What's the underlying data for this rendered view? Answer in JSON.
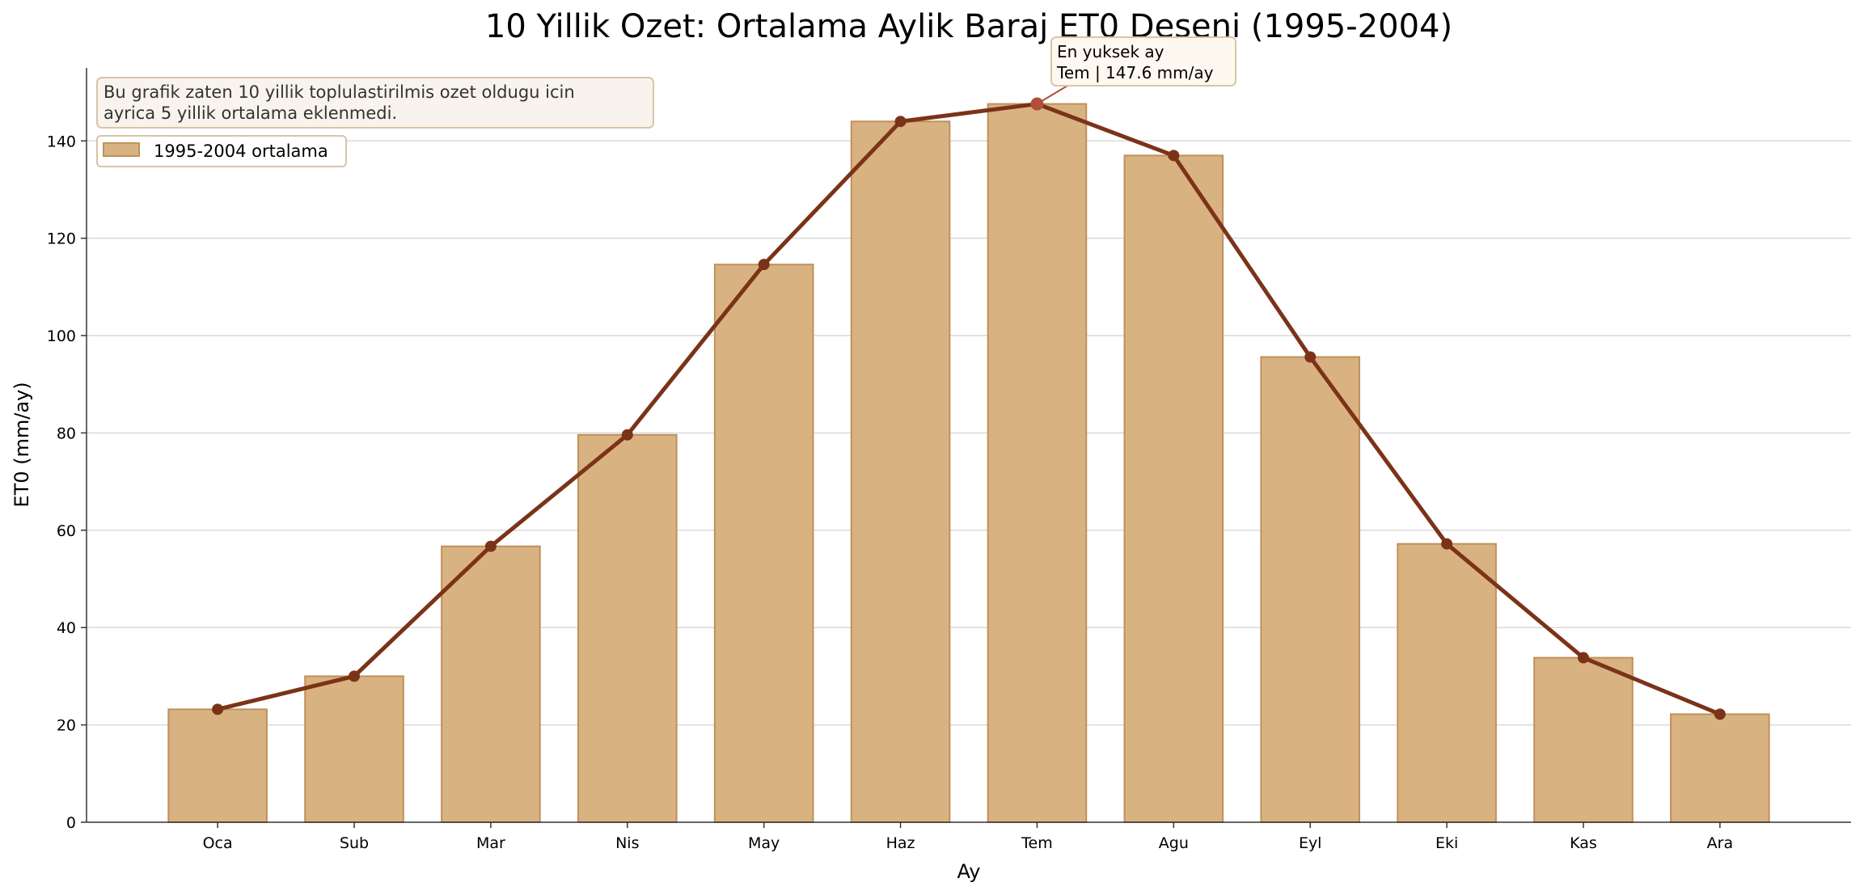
{
  "chart_data": {
    "type": "bar",
    "title": "10 Yillik Ozet: Ortalama Aylik Baraj ET0 Deseni (1995-2004)",
    "xlabel": "Ay",
    "ylabel": "ET0 (mm/ay)",
    "categories": [
      "Oca",
      "Sub",
      "Mar",
      "Nis",
      "May",
      "Haz",
      "Tem",
      "Agu",
      "Eyl",
      "Eki",
      "Kas",
      "Ara"
    ],
    "values": [
      23.2,
      30.0,
      56.7,
      79.6,
      114.6,
      144.0,
      147.6,
      137.0,
      95.6,
      57.2,
      33.8,
      22.2
    ],
    "line_overlay": true,
    "ylim": [
      0,
      155
    ],
    "yticks": [
      0,
      20,
      40,
      60,
      80,
      100,
      120,
      140
    ],
    "grid": "horizontal",
    "legend": {
      "position": "top-left",
      "entries": [
        "1995-2004 ortalama"
      ]
    },
    "note": [
      "Bu grafik zaten 10 yillik toplulastirilmis ozet oldugu icin",
      "ayrica 5 yillik ortalama eklenmedi."
    ],
    "annotation": {
      "lines": [
        "En yuksek ay",
        "Tem | 147.6 mm/ay"
      ],
      "category": "Tem",
      "value": 147.6
    },
    "colors": {
      "bar_fill": "#d9b282",
      "bar_edge": "#c0915a",
      "line": "#7b3318",
      "peak_marker": "#b0503a",
      "grid": "#d9d9d9"
    }
  }
}
